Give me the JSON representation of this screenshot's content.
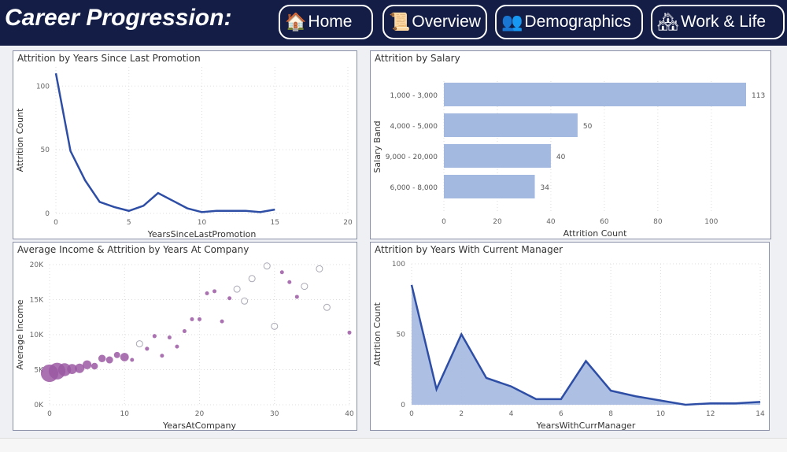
{
  "header": {
    "title": "Career Progression:",
    "nav": [
      {
        "label": "Home",
        "icon": "house-icon"
      },
      {
        "label": "Overview",
        "icon": "scroll-icon"
      },
      {
        "label": "Demographics",
        "icon": "people-chart-icon"
      },
      {
        "label": "Work & Life",
        "icon": "balance-icon"
      }
    ]
  },
  "colors": {
    "header": "#141d45",
    "line": "#2e4ea6",
    "bar": "#a4b9e0",
    "bubble": "#9b59a3",
    "area": "#a4b9e0"
  },
  "chart_data": [
    {
      "type": "line",
      "title": "Attrition by Years Since Last Promotion",
      "xlabel": "YearsSinceLastPromotion",
      "ylabel": "Attrition Count",
      "xlim": [
        0,
        20
      ],
      "ylim": [
        0,
        115
      ],
      "xticks": [
        0,
        5,
        10,
        15,
        20
      ],
      "yticks": [
        0,
        50,
        100
      ],
      "x": [
        0,
        1,
        2,
        3,
        4,
        5,
        6,
        7,
        8,
        9,
        10,
        11,
        12,
        13,
        14,
        15
      ],
      "y": [
        110,
        49,
        26,
        9,
        5,
        2,
        6,
        16,
        10,
        4,
        1,
        2,
        2,
        2,
        1,
        3
      ]
    },
    {
      "type": "bar",
      "title": "Attrition by Salary",
      "xlabel": "Attrition Count",
      "ylabel": "Salary Band",
      "xlim": [
        0,
        113
      ],
      "xticks": [
        0,
        20,
        40,
        60,
        80,
        100
      ],
      "categories": [
        "1,000 - 3,000",
        "4,000 - 5,000",
        "9,000 - 20,000",
        "6,000 - 8,000"
      ],
      "values": [
        113,
        50,
        40,
        34
      ]
    },
    {
      "type": "scatter",
      "title": "Average Income & Attrition by Years At Company",
      "xlabel": "YearsAtCompany",
      "ylabel": "Average Income",
      "xlim": [
        0,
        40
      ],
      "ylim": [
        0,
        20000
      ],
      "xticks": [
        0,
        10,
        20,
        30,
        40
      ],
      "yticks": [
        "0K",
        "5K",
        "10K",
        "15K",
        "20K"
      ],
      "points": [
        [
          0,
          4500,
          55
        ],
        [
          1,
          4800,
          50
        ],
        [
          2,
          5000,
          30
        ],
        [
          3,
          5100,
          18
        ],
        [
          4,
          5200,
          16
        ],
        [
          5,
          5700,
          14
        ],
        [
          6,
          5500,
          8
        ],
        [
          7,
          6600,
          10
        ],
        [
          8,
          6400,
          9
        ],
        [
          9,
          7100,
          7
        ],
        [
          10,
          6800,
          13
        ],
        [
          11,
          6400,
          2
        ],
        [
          12,
          8700,
          0
        ],
        [
          13,
          8000,
          3
        ],
        [
          14,
          9800,
          3
        ],
        [
          15,
          7000,
          1
        ],
        [
          16,
          9600,
          1
        ],
        [
          17,
          8300,
          1
        ],
        [
          18,
          10500,
          1
        ],
        [
          19,
          12200,
          1
        ],
        [
          20,
          12200,
          1
        ],
        [
          21,
          15900,
          1
        ],
        [
          22,
          16200,
          1
        ],
        [
          23,
          11900,
          1
        ],
        [
          24,
          15200,
          1
        ],
        [
          25,
          16500,
          0
        ],
        [
          26,
          14800,
          0
        ],
        [
          27,
          18000,
          0
        ],
        [
          29,
          19800,
          0
        ],
        [
          30,
          11200,
          0
        ],
        [
          31,
          18900,
          1
        ],
        [
          32,
          17500,
          1
        ],
        [
          33,
          15400,
          1
        ],
        [
          34,
          16900,
          0
        ],
        [
          36,
          19400,
          0
        ],
        [
          37,
          13900,
          0
        ],
        [
          40,
          10300,
          1
        ]
      ]
    },
    {
      "type": "area",
      "title": "Attrition by Years With Current Manager",
      "xlabel": "YearsWithCurrManager",
      "ylabel": "Attrition Count",
      "xlim": [
        0,
        14
      ],
      "ylim": [
        0,
        100
      ],
      "xticks": [
        0,
        2,
        4,
        6,
        8,
        10,
        12,
        14
      ],
      "yticks": [
        0,
        50,
        100
      ],
      "x": [
        0,
        1,
        2,
        3,
        4,
        5,
        6,
        7,
        8,
        9,
        10,
        11,
        12,
        13,
        14
      ],
      "y": [
        85,
        11,
        50,
        19,
        13,
        4,
        4,
        31,
        10,
        6,
        3,
        0,
        1,
        1,
        2
      ]
    }
  ]
}
